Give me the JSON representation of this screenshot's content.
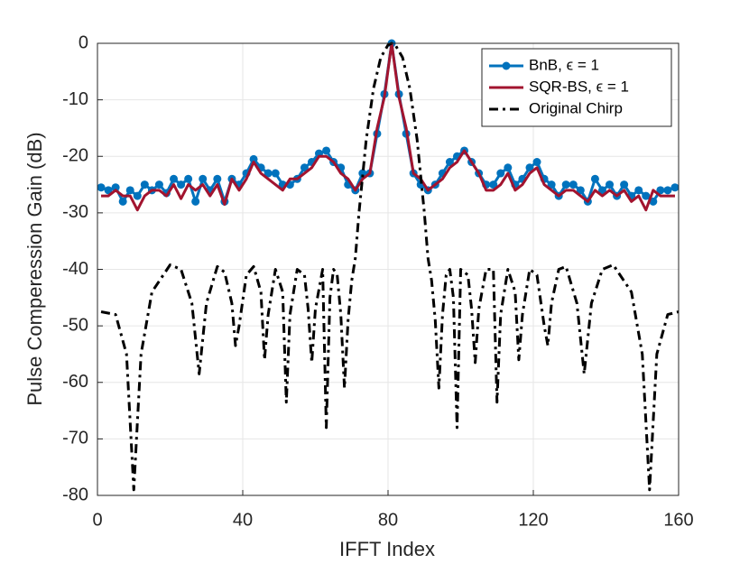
{
  "chart_data": {
    "type": "line",
    "xlabel": "IFFT Index",
    "ylabel": "Pulse Comperession Gain (dB)",
    "xlim": [
      0,
      160
    ],
    "ylim": [
      -80,
      0
    ],
    "xticks": [
      0,
      40,
      80,
      120,
      160
    ],
    "yticks": [
      0,
      -10,
      -20,
      -30,
      -40,
      -50,
      -60,
      -70,
      -80
    ],
    "grid": true,
    "legend": "upper right",
    "series": [
      {
        "name": "BnB,  ϵ = 1",
        "color": "#0072bd",
        "marker": "circle",
        "dash": "solid",
        "x": [
          1,
          3,
          5,
          7,
          9,
          11,
          13,
          15,
          17,
          19,
          21,
          23,
          25,
          27,
          29,
          31,
          33,
          35,
          37,
          39,
          41,
          43,
          45,
          47,
          49,
          51,
          53,
          55,
          57,
          59,
          61,
          63,
          65,
          67,
          69,
          71,
          73,
          75,
          77,
          79,
          81,
          83,
          85,
          87,
          89,
          91,
          93,
          95,
          97,
          99,
          101,
          103,
          105,
          107,
          109,
          111,
          113,
          115,
          117,
          119,
          121,
          123,
          125,
          127,
          129,
          131,
          133,
          135,
          137,
          139,
          141,
          143,
          145,
          147,
          149,
          151,
          153,
          155,
          157,
          159
        ],
        "values": [
          -25.5,
          -26,
          -25.5,
          -28,
          -26,
          -27,
          -25,
          -26,
          -25,
          -26.5,
          -24,
          -25,
          -24,
          -28,
          -24,
          -26,
          -24,
          -28,
          -24,
          -25,
          -23,
          -20.5,
          -22,
          -23,
          -23,
          -25,
          -25,
          -24,
          -22,
          -21,
          -19.5,
          -19,
          -21,
          -22,
          -25,
          -26,
          -23,
          -23,
          -16,
          -9,
          0,
          -9,
          -16,
          -23,
          -25,
          -26,
          -25,
          -23,
          -21,
          -20,
          -19,
          -21,
          -23,
          -25,
          -25,
          -23,
          -22,
          -25,
          -24,
          -22,
          -21,
          -24,
          -25,
          -27,
          -25,
          -25,
          -26,
          -28,
          -24,
          -26,
          -25,
          -27,
          -25,
          -27,
          -26,
          -27,
          -28,
          -26,
          -26,
          -25.5
        ]
      },
      {
        "name": "SQR-BS, ϵ = 1",
        "color": "#a2142f",
        "marker": "none",
        "dash": "solid",
        "x": [
          1,
          3,
          5,
          7,
          9,
          11,
          13,
          15,
          17,
          19,
          21,
          23,
          25,
          27,
          29,
          31,
          33,
          35,
          37,
          39,
          41,
          43,
          45,
          47,
          49,
          51,
          53,
          55,
          57,
          59,
          61,
          63,
          65,
          67,
          69,
          71,
          73,
          75,
          77,
          79,
          81,
          83,
          85,
          87,
          89,
          91,
          93,
          95,
          97,
          99,
          101,
          103,
          105,
          107,
          109,
          111,
          113,
          115,
          117,
          119,
          121,
          123,
          125,
          127,
          129,
          131,
          133,
          135,
          137,
          139,
          141,
          143,
          145,
          147,
          149,
          151,
          153,
          155,
          157,
          159
        ],
        "values": [
          -27,
          -27,
          -26,
          -27,
          -27,
          -29.5,
          -27,
          -26,
          -26,
          -27,
          -25,
          -27.5,
          -25,
          -26,
          -25,
          -27,
          -25,
          -28.5,
          -24,
          -26,
          -24,
          -21,
          -23,
          -24,
          -25,
          -26,
          -24,
          -24,
          -23,
          -22,
          -20,
          -20,
          -21,
          -23,
          -24,
          -26,
          -24,
          -23,
          -15,
          -9.5,
          0,
          -9.5,
          -15,
          -23,
          -24,
          -26,
          -25,
          -24,
          -22,
          -21,
          -19,
          -21,
          -23,
          -26,
          -26,
          -25,
          -23,
          -26,
          -25,
          -23,
          -22,
          -25,
          -26,
          -27,
          -26,
          -26,
          -27,
          -28,
          -26,
          -27,
          -26,
          -27,
          -26,
          -28,
          -27,
          -29.5,
          -26,
          -27,
          -27,
          -27
        ]
      },
      {
        "name": "Original Chirp",
        "color": "#000000",
        "marker": "none",
        "dash": "dashdot",
        "x": [
          1,
          5,
          8,
          10,
          12,
          15,
          20,
          23,
          26,
          28,
          30,
          33,
          35,
          37,
          38,
          39,
          41,
          43,
          45,
          46,
          47,
          49,
          51,
          52,
          53,
          55,
          57,
          58,
          59,
          60,
          62,
          63,
          64,
          65,
          66,
          67,
          68,
          69,
          70,
          71,
          72,
          74,
          76,
          78,
          80,
          81,
          82,
          84,
          86,
          88,
          90,
          91,
          92,
          93,
          94,
          95,
          96,
          97,
          98,
          99,
          100,
          102,
          103,
          104,
          105,
          107,
          109,
          110,
          111,
          113,
          115,
          116,
          117,
          119,
          121,
          123,
          124,
          125,
          127,
          129,
          132,
          134,
          136,
          139,
          142,
          147,
          150,
          152,
          154,
          157,
          160
        ],
        "values": [
          -47.5,
          -48,
          -55,
          -79,
          -55,
          -44,
          -39.2,
          -40,
          -46,
          -58.5,
          -46,
          -39.5,
          -40.5,
          -46,
          -53.5,
          -50,
          -41,
          -39.5,
          -44,
          -56,
          -48,
          -40,
          -44,
          -63.5,
          -48,
          -40,
          -41,
          -47,
          -56.5,
          -47,
          -40,
          -68,
          -45,
          -40,
          -41,
          -48,
          -61,
          -49,
          -42,
          -38,
          -30,
          -17,
          -8,
          -2.5,
          -0.3,
          0,
          -0.3,
          -2.5,
          -8,
          -17,
          -30,
          -38,
          -42,
          -49,
          -61,
          -48,
          -41,
          -40,
          -45,
          -68,
          -40,
          -41,
          -47,
          -56.5,
          -47,
          -40,
          -40,
          -63.5,
          -48,
          -40,
          -44,
          -56,
          -48,
          -40,
          -41,
          -50,
          -53.5,
          -46,
          -40,
          -39.5,
          -46,
          -58.5,
          -46,
          -40,
          -39.2,
          -44,
          -55,
          -79,
          -55,
          -48,
          -47.5
        ]
      }
    ]
  }
}
